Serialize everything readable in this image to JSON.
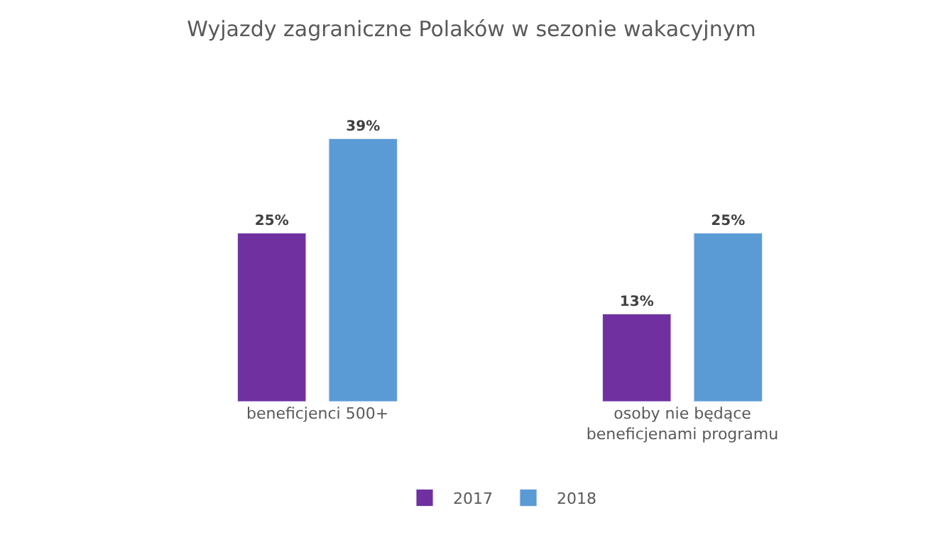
{
  "chart_data": {
    "type": "bar",
    "title": "Wyjazdy zagraniczne Polaków w sezonie wakacyjnym",
    "categories": [
      "beneficjenci 500+",
      "osoby nie będące\nbeneficjenami programu"
    ],
    "series": [
      {
        "name": "2017",
        "color": "#7030a0",
        "values": [
          25,
          13
        ],
        "value_labels": [
          "25%",
          "13%"
        ]
      },
      {
        "name": "2018",
        "color": "#5b9bd5",
        "values": [
          39,
          25
        ],
        "value_labels": [
          "39%",
          "25%"
        ]
      }
    ],
    "legend": "bottom"
  }
}
